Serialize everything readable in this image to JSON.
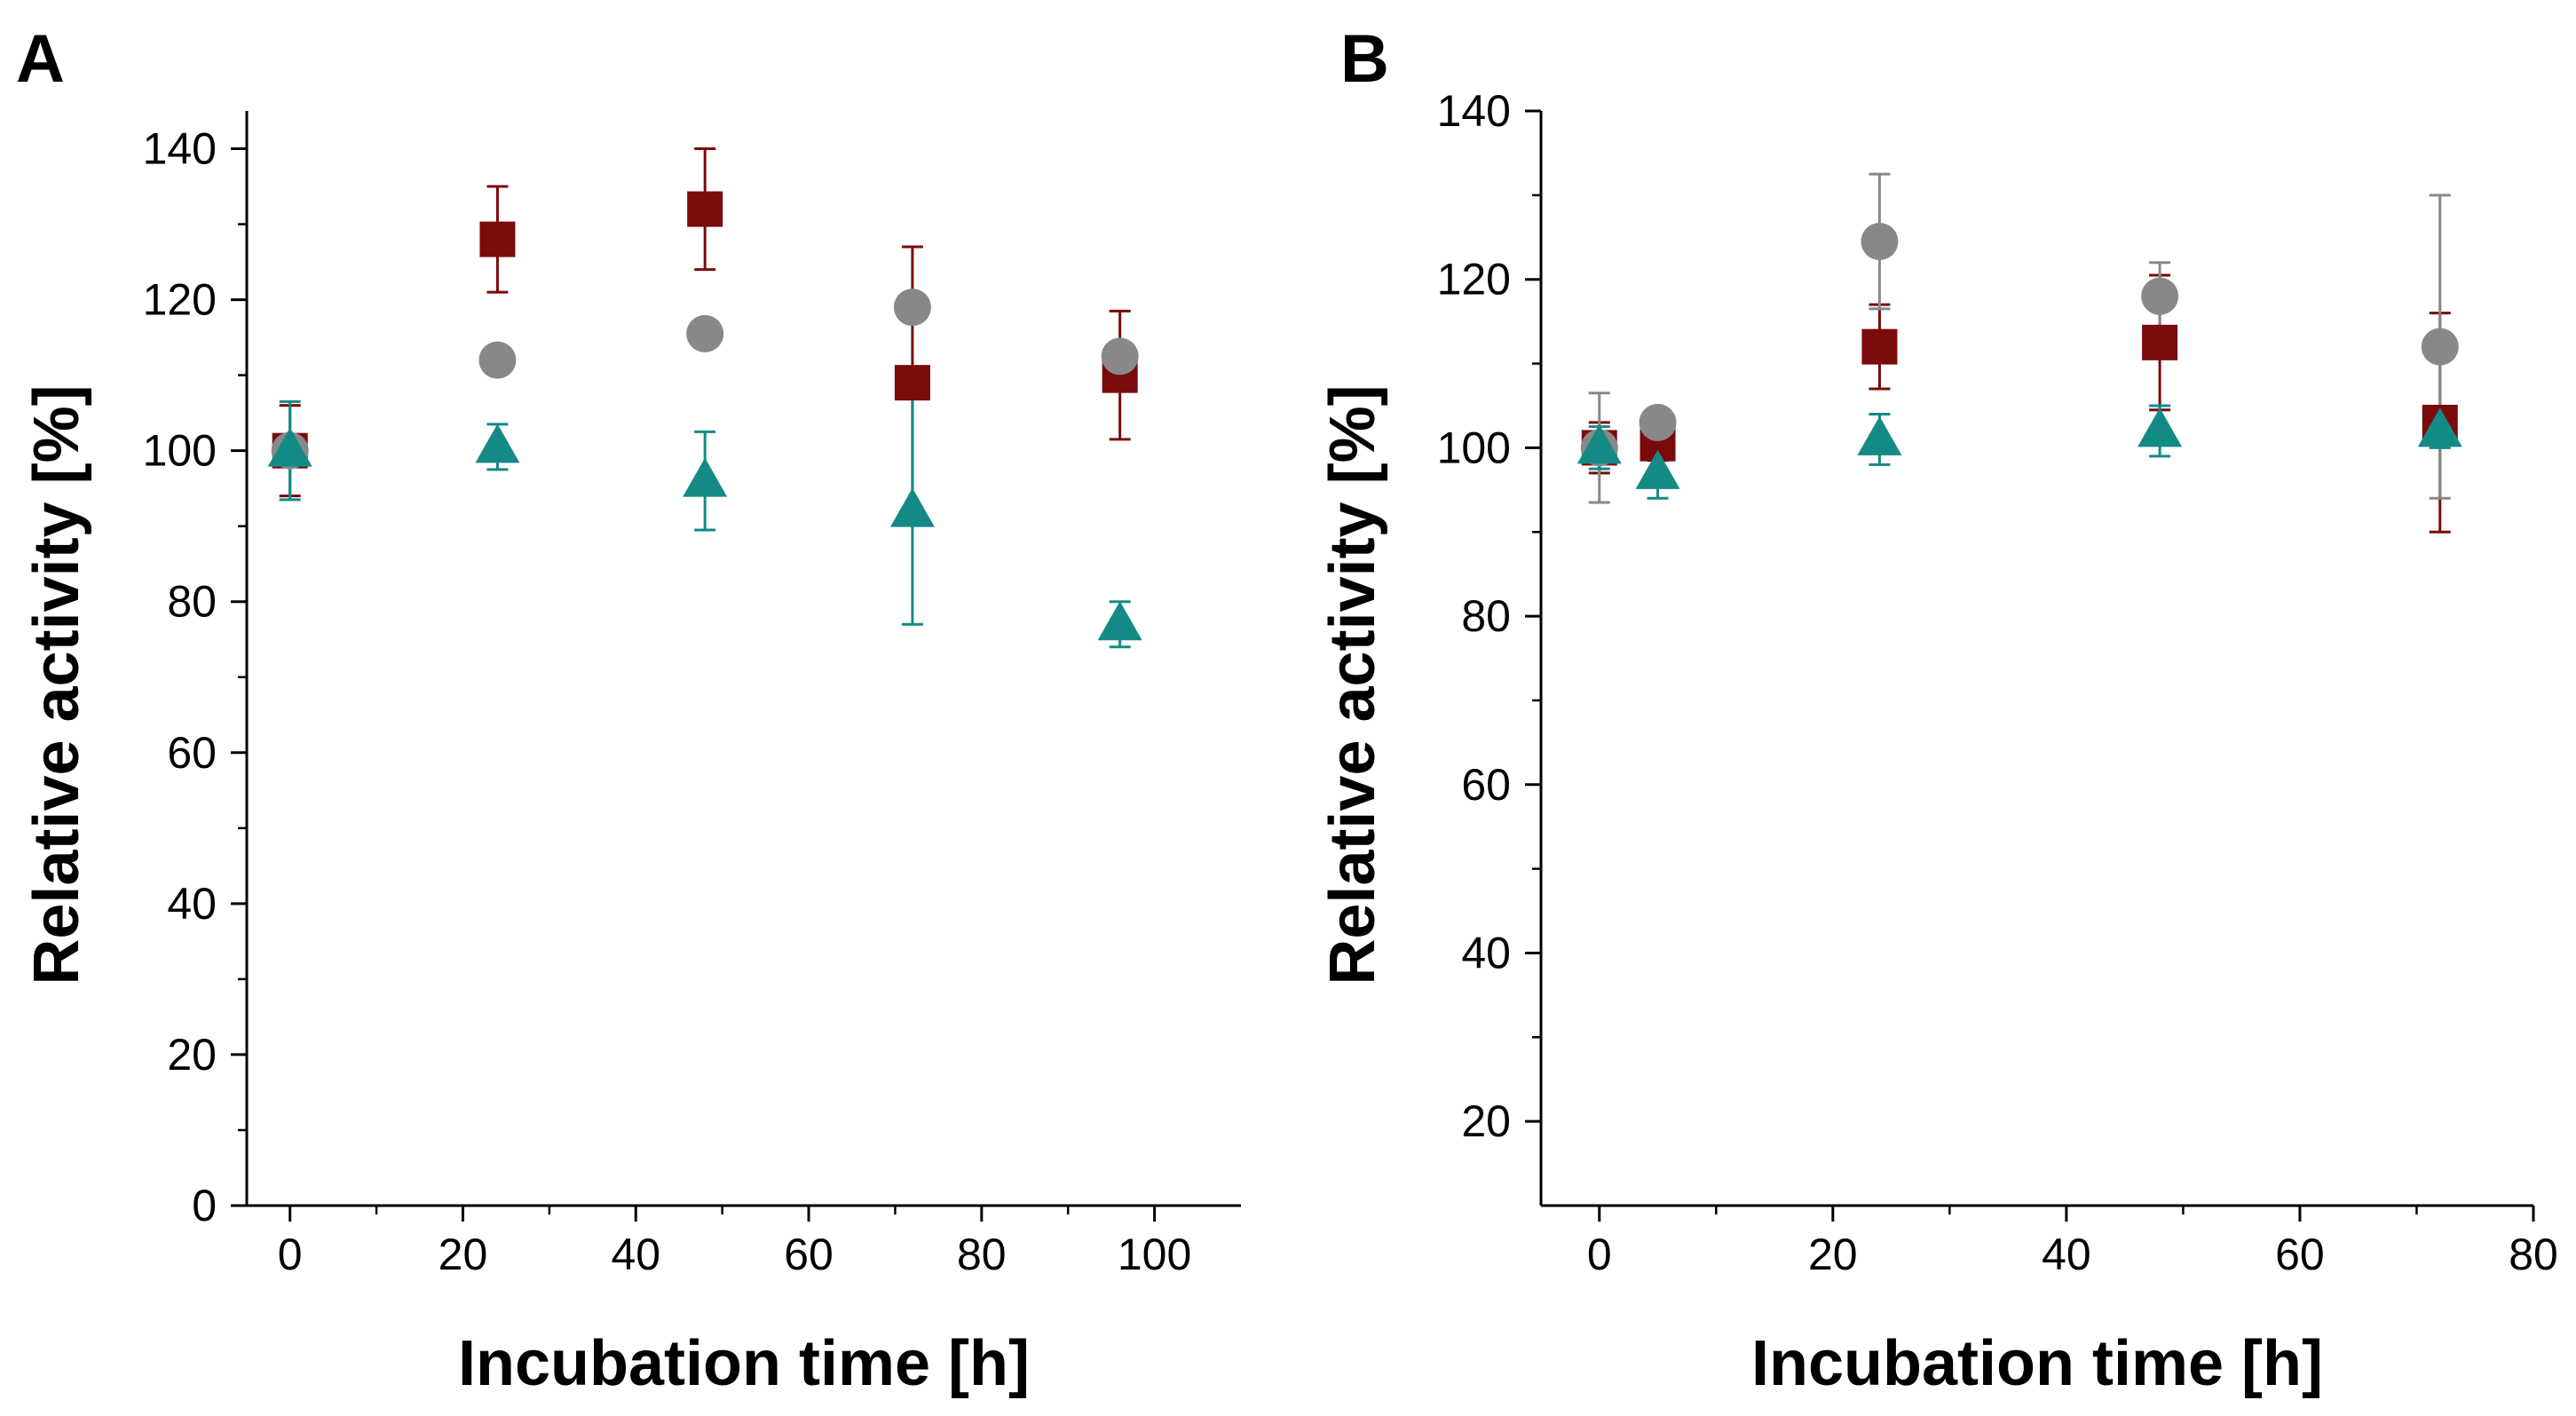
{
  "chart_data": [
    {
      "panel_label": "A",
      "type": "scatter",
      "xlabel": "Incubation time [h]",
      "ylabel": "Relative activity [%]",
      "xlim": [
        -5,
        110
      ],
      "ylim": [
        0,
        145
      ],
      "xticks": [
        0,
        20,
        40,
        60,
        80,
        100
      ],
      "xtick_labels": [
        "0",
        "20",
        "40",
        "60",
        "80",
        "100"
      ],
      "yticks": [
        0,
        20,
        40,
        60,
        80,
        100,
        120,
        140
      ],
      "ytick_labels": [
        "0",
        "20",
        "40",
        "60",
        "80",
        "100",
        "120",
        "140"
      ],
      "grid": false,
      "series": [
        {
          "name": "series-square",
          "marker": "square",
          "color": "#7b0a0a",
          "points": [
            {
              "x": 0,
              "y": 100,
              "err": 6
            },
            {
              "x": 24,
              "y": 128,
              "err": 7
            },
            {
              "x": 48,
              "y": 132,
              "err": 8
            },
            {
              "x": 72,
              "y": 109,
              "err": 18
            },
            {
              "x": 96,
              "y": 110,
              "err": 8.5
            }
          ]
        },
        {
          "name": "series-circle",
          "marker": "circle",
          "color": "#888888",
          "points": [
            {
              "x": 0,
              "y": 100,
              "err": 0
            },
            {
              "x": 24,
              "y": 112,
              "err": 0
            },
            {
              "x": 48,
              "y": 115.5,
              "err": 0
            },
            {
              "x": 72,
              "y": 119,
              "err": 0
            },
            {
              "x": 96,
              "y": 112.5,
              "err": 0
            }
          ]
        },
        {
          "name": "series-triangle",
          "marker": "triangle",
          "color": "#148a86",
          "points": [
            {
              "x": 0,
              "y": 100,
              "err": 6.5
            },
            {
              "x": 24,
              "y": 100.5,
              "err": 3
            },
            {
              "x": 48,
              "y": 96,
              "err": 6.5
            },
            {
              "x": 72,
              "y": 92,
              "err": 15
            },
            {
              "x": 96,
              "y": 77,
              "err": 3
            }
          ]
        }
      ]
    },
    {
      "panel_label": "B",
      "type": "scatter",
      "xlabel": "Incubation time [h]",
      "ylabel": "Relative activity [%]",
      "xlim": [
        -5,
        80
      ],
      "ylim": [
        10,
        140
      ],
      "xticks": [
        0,
        20,
        40,
        60,
        80
      ],
      "xtick_labels": [
        "0",
        "20",
        "40",
        "60",
        "80"
      ],
      "yticks": [
        20,
        40,
        60,
        80,
        100,
        120,
        140
      ],
      "ytick_labels": [
        "20",
        "40",
        "60",
        "80",
        "100",
        "120",
        "140"
      ],
      "grid": false,
      "series": [
        {
          "name": "series-square",
          "marker": "square",
          "color": "#7b0a0a",
          "points": [
            {
              "x": 0,
              "y": 100,
              "err": 3
            },
            {
              "x": 5,
              "y": 100.5,
              "err": 2
            },
            {
              "x": 24,
              "y": 112,
              "err": 5
            },
            {
              "x": 48,
              "y": 112.5,
              "err": 8
            },
            {
              "x": 72,
              "y": 103,
              "err": 13
            }
          ]
        },
        {
          "name": "series-circle",
          "marker": "circle",
          "color": "#888888",
          "points": [
            {
              "x": 0,
              "y": 100,
              "err": 6.5
            },
            {
              "x": 5,
              "y": 103,
              "err": 0
            },
            {
              "x": 24,
              "y": 124.5,
              "err": 8
            },
            {
              "x": 48,
              "y": 118,
              "err": 4
            },
            {
              "x": 72,
              "y": 112,
              "err": 18
            }
          ]
        },
        {
          "name": "series-triangle",
          "marker": "triangle",
          "color": "#148a86",
          "points": [
            {
              "x": 0,
              "y": 100,
              "err": 2.5
            },
            {
              "x": 5,
              "y": 97,
              "err": 3
            },
            {
              "x": 24,
              "y": 101,
              "err": 3
            },
            {
              "x": 48,
              "y": 102,
              "err": 3
            },
            {
              "x": 72,
              "y": 102,
              "err": 2
            }
          ]
        }
      ]
    }
  ]
}
